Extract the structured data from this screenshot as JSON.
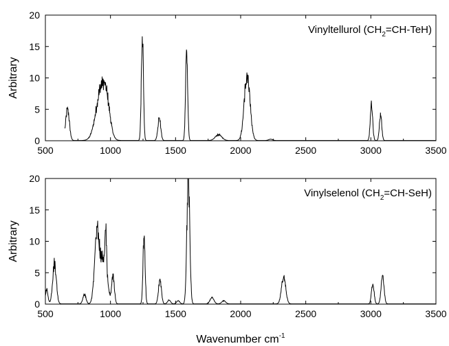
{
  "xlabel": "Wavenumber cm",
  "xlabel_sup": "-1",
  "chart_data": [
    {
      "type": "line",
      "title_parts": [
        "Vinyltellurol (CH",
        "2",
        "=CH-TeH)"
      ],
      "xlabel": "Wavenumber cm-1",
      "ylabel": "Arbitrary",
      "xlim": [
        500,
        3500
      ],
      "ylim": [
        0,
        20
      ],
      "x_ticks": [
        500,
        1000,
        1500,
        2000,
        2500,
        3000,
        3500
      ],
      "y_ticks": [
        0,
        5,
        10,
        15,
        20
      ],
      "grid": false,
      "color": "#000000",
      "peaks": [
        {
          "x": 670,
          "w": 14,
          "h": 5.0
        },
        {
          "x": 930,
          "w": 40,
          "h": 8.2
        },
        {
          "x": 975,
          "w": 25,
          "h": 3.0
        },
        {
          "x": 1245,
          "w": 8,
          "h": 16.6
        },
        {
          "x": 1375,
          "w": 11,
          "h": 3.6
        },
        {
          "x": 1585,
          "w": 8,
          "h": 14.4
        },
        {
          "x": 1830,
          "w": 25,
          "h": 0.9
        },
        {
          "x": 2050,
          "w": 22,
          "h": 10.5
        },
        {
          "x": 2230,
          "w": 15,
          "h": 0.2
        },
        {
          "x": 3005,
          "w": 9,
          "h": 5.8
        },
        {
          "x": 3075,
          "w": 9,
          "h": 4.0
        }
      ]
    },
    {
      "type": "line",
      "title_parts": [
        "Vinylselenol (CH",
        "2",
        "=CH-SeH)"
      ],
      "xlabel": "Wavenumber cm-1",
      "ylabel": "Arbitrary",
      "xlim": [
        500,
        3500
      ],
      "ylim": [
        0,
        20
      ],
      "x_ticks": [
        500,
        1000,
        1500,
        2000,
        2500,
        3000,
        3500
      ],
      "y_ticks": [
        0,
        5,
        10,
        15,
        20
      ],
      "grid": false,
      "color": "#000000",
      "peaks": [
        {
          "x": 510,
          "w": 10,
          "h": 2.2
        },
        {
          "x": 570,
          "w": 14,
          "h": 6.5
        },
        {
          "x": 800,
          "w": 12,
          "h": 1.5
        },
        {
          "x": 895,
          "w": 18,
          "h": 10.0
        },
        {
          "x": 945,
          "w": 28,
          "h": 7.0
        },
        {
          "x": 965,
          "w": 6,
          "h": 6.5
        },
        {
          "x": 1020,
          "w": 10,
          "h": 4.5
        },
        {
          "x": 1258,
          "w": 8,
          "h": 10.8
        },
        {
          "x": 1380,
          "w": 11,
          "h": 3.8
        },
        {
          "x": 1450,
          "w": 12,
          "h": 0.6
        },
        {
          "x": 1520,
          "w": 12,
          "h": 0.5
        },
        {
          "x": 1598,
          "w": 11,
          "h": 19.8
        },
        {
          "x": 1780,
          "w": 15,
          "h": 1.0
        },
        {
          "x": 1870,
          "w": 15,
          "h": 0.5
        },
        {
          "x": 2330,
          "w": 16,
          "h": 4.3
        },
        {
          "x": 3015,
          "w": 10,
          "h": 3.2
        },
        {
          "x": 3090,
          "w": 11,
          "h": 4.6
        }
      ]
    }
  ]
}
